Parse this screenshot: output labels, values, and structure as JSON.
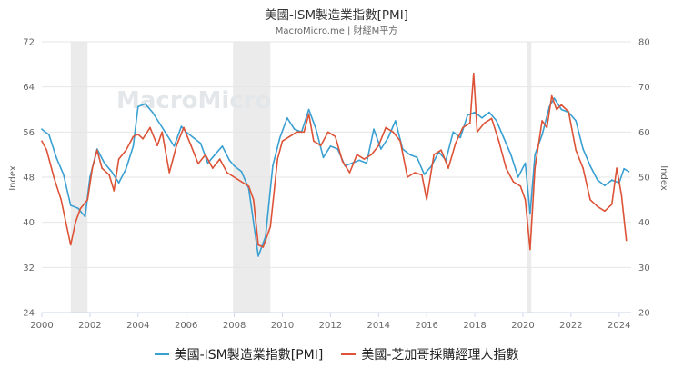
{
  "chart_data": {
    "type": "line",
    "title": "美國-ISM製造業指數[PMI]",
    "subtitle": "MacroMicro.me | 財經M平方",
    "watermark": "MacroMicro",
    "xlabel": "",
    "ylabel_left": "Index",
    "ylabel_right": "Index",
    "x_tick_labels": [
      "2000",
      "2002",
      "2004",
      "2006",
      "2008",
      "2010",
      "2012",
      "2014",
      "2016",
      "2018",
      "2020",
      "2022",
      "2024"
    ],
    "y_left_ticks": [
      "24",
      "32",
      "40",
      "48",
      "56",
      "64",
      "72"
    ],
    "y_right_ticks": [
      "20",
      "30",
      "40",
      "50",
      "60",
      "70",
      "80"
    ],
    "ylim_left": [
      24,
      72
    ],
    "ylim_right": [
      20,
      80
    ],
    "xlim": [
      2000.0,
      2024.5
    ],
    "grid": true,
    "legend_position": "bottom",
    "recessions": [
      [
        2001.2,
        2001.9
      ],
      [
        2007.95,
        2009.5
      ],
      [
        2020.15,
        2020.35
      ]
    ],
    "series": [
      {
        "name": "美國-ISM製造業指數[PMI]",
        "color": "#3aa0d2",
        "axis": "left",
        "x": [
          2000.0,
          2000.3,
          2000.6,
          2000.9,
          2001.2,
          2001.5,
          2001.8,
          2002.0,
          2002.3,
          2002.6,
          2002.9,
          2003.2,
          2003.5,
          2003.8,
          2004.0,
          2004.3,
          2004.6,
          2004.9,
          2005.2,
          2005.5,
          2005.8,
          2006.0,
          2006.3,
          2006.6,
          2006.9,
          2007.2,
          2007.5,
          2007.8,
          2008.0,
          2008.3,
          2008.6,
          2008.9,
          2009.0,
          2009.3,
          2009.6,
          2009.9,
          2010.2,
          2010.5,
          2010.8,
          2011.1,
          2011.4,
          2011.7,
          2012.0,
          2012.3,
          2012.6,
          2012.9,
          2013.2,
          2013.5,
          2013.8,
          2014.1,
          2014.4,
          2014.7,
          2015.0,
          2015.3,
          2015.6,
          2015.9,
          2016.2,
          2016.5,
          2016.8,
          2017.1,
          2017.4,
          2017.7,
          2018.0,
          2018.3,
          2018.6,
          2018.9,
          2019.2,
          2019.5,
          2019.8,
          2020.1,
          2020.3,
          2020.5,
          2020.8,
          2021.1,
          2021.3,
          2021.6,
          2021.9,
          2022.2,
          2022.5,
          2022.8,
          2023.1,
          2023.4,
          2023.7,
          2024.0,
          2024.2,
          2024.4
        ],
        "values": [
          56.5,
          55.5,
          51.5,
          48.5,
          43.0,
          42.5,
          41.0,
          48.0,
          53.0,
          50.5,
          49.0,
          47.0,
          49.5,
          53.5,
          60.5,
          61.0,
          59.5,
          57.5,
          55.5,
          53.5,
          57.0,
          56.0,
          55.0,
          54.0,
          50.5,
          52.0,
          53.5,
          51.0,
          50.0,
          49.0,
          46.0,
          37.0,
          34.0,
          37.5,
          50.0,
          55.0,
          58.5,
          56.5,
          56.0,
          60.0,
          56.5,
          51.5,
          53.5,
          53.0,
          50.0,
          50.5,
          51.0,
          50.5,
          56.5,
          53.0,
          55.0,
          58.0,
          53.0,
          52.0,
          51.5,
          48.5,
          50.0,
          52.5,
          51.0,
          56.0,
          55.0,
          59.0,
          59.5,
          58.5,
          59.5,
          58.0,
          55.0,
          52.0,
          48.0,
          50.5,
          41.5,
          52.0,
          55.5,
          60.5,
          62.0,
          60.0,
          59.5,
          58.0,
          53.0,
          50.0,
          47.5,
          46.5,
          47.5,
          47.0,
          49.5,
          49.0
        ]
      },
      {
        "name": "美國-芝加哥採購經理人指數",
        "color": "#dd5337",
        "axis": "right",
        "x": [
          2000.0,
          2000.2,
          2000.5,
          2000.8,
          2001.0,
          2001.2,
          2001.4,
          2001.6,
          2001.9,
          2002.1,
          2002.3,
          2002.5,
          2002.8,
          2003.0,
          2003.2,
          2003.5,
          2003.8,
          2004.0,
          2004.2,
          2004.5,
          2004.8,
          2005.0,
          2005.3,
          2005.6,
          2005.9,
          2006.2,
          2006.5,
          2006.8,
          2007.1,
          2007.4,
          2007.7,
          2008.0,
          2008.3,
          2008.6,
          2008.8,
          2009.0,
          2009.2,
          2009.5,
          2009.8,
          2010.0,
          2010.3,
          2010.6,
          2010.9,
          2011.1,
          2011.3,
          2011.6,
          2011.9,
          2012.2,
          2012.5,
          2012.8,
          2013.1,
          2013.4,
          2013.7,
          2014.0,
          2014.3,
          2014.6,
          2014.9,
          2015.2,
          2015.5,
          2015.8,
          2016.0,
          2016.3,
          2016.6,
          2016.9,
          2017.2,
          2017.5,
          2017.8,
          2017.95,
          2018.1,
          2018.4,
          2018.7,
          2019.0,
          2019.3,
          2019.6,
          2019.9,
          2020.1,
          2020.3,
          2020.5,
          2020.8,
          2021.0,
          2021.2,
          2021.4,
          2021.6,
          2021.9,
          2022.2,
          2022.5,
          2022.8,
          2023.1,
          2023.4,
          2023.7,
          2023.9,
          2024.1,
          2024.3
        ],
        "values": [
          58.0,
          56.0,
          50.0,
          45.0,
          40.0,
          35.0,
          40.0,
          43.0,
          45.0,
          52.0,
          56.0,
          52.0,
          50.5,
          47.0,
          54.0,
          56.0,
          59.0,
          59.5,
          58.5,
          61.0,
          57.0,
          60.0,
          51.0,
          57.0,
          61.0,
          57.0,
          53.0,
          55.0,
          52.0,
          54.0,
          51.0,
          50.0,
          49.0,
          48.0,
          45.0,
          35.0,
          34.5,
          39.0,
          54.0,
          58.0,
          59.0,
          60.0,
          60.0,
          64.0,
          58.0,
          57.0,
          60.0,
          59.0,
          53.5,
          51.0,
          55.0,
          54.0,
          55.0,
          57.0,
          61.0,
          60.0,
          58.0,
          50.0,
          51.0,
          50.5,
          45.0,
          55.0,
          56.0,
          52.0,
          57.5,
          61.0,
          62.0,
          73.0,
          60.0,
          62.0,
          63.0,
          58.0,
          52.0,
          49.0,
          48.0,
          45.0,
          34.0,
          52.0,
          62.5,
          61.0,
          68.0,
          65.0,
          66.0,
          64.5,
          56.0,
          52.0,
          45.0,
          43.5,
          42.5,
          44.0,
          52.0,
          46.0,
          36.0
        ]
      }
    ]
  }
}
